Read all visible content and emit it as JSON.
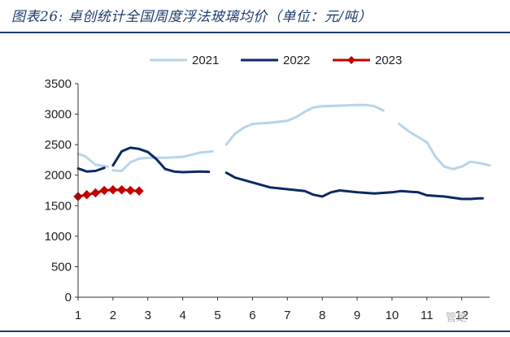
{
  "figure": {
    "title": "图表26: 卓创统计全国周度浮法玻璃均价（单位：元/吨）",
    "watermark": "管是",
    "colors": {
      "frame": "#1f3c6e"
    }
  },
  "chart_data": {
    "type": "line",
    "title": "",
    "xlabel": "",
    "ylabel": "",
    "x_ticks": [
      "1",
      "2",
      "3",
      "4",
      "5",
      "6",
      "7",
      "8",
      "9",
      "10",
      "11",
      "12"
    ],
    "y_ticks": [
      "0",
      "500",
      "1000",
      "1500",
      "2000",
      "2500",
      "3000",
      "3500"
    ],
    "xlim": [
      1,
      12.8
    ],
    "ylim": [
      0,
      3500
    ],
    "grid": false,
    "legend_position": "top",
    "series": [
      {
        "name": "2021",
        "color": "#b8d4ea",
        "marker": "none",
        "points": [
          [
            1.0,
            2350
          ],
          [
            1.2,
            2310
          ],
          [
            1.5,
            2170
          ],
          [
            1.85,
            2140
          ],
          [
            2.0,
            2080
          ],
          [
            2.25,
            2070
          ],
          [
            2.5,
            2210
          ],
          [
            2.75,
            2270
          ],
          [
            3.0,
            2285
          ],
          [
            3.5,
            2285
          ],
          [
            4.0,
            2300
          ],
          [
            4.5,
            2370
          ],
          [
            4.85,
            2390
          ],
          [
            5.25,
            2500
          ],
          [
            5.5,
            2680
          ],
          [
            5.75,
            2780
          ],
          [
            6.0,
            2840
          ],
          [
            6.5,
            2860
          ],
          [
            7.0,
            2890
          ],
          [
            7.25,
            2950
          ],
          [
            7.5,
            3040
          ],
          [
            7.75,
            3110
          ],
          [
            8.0,
            3130
          ],
          [
            8.5,
            3140
          ],
          [
            9.0,
            3150
          ],
          [
            9.25,
            3150
          ],
          [
            9.5,
            3130
          ],
          [
            9.75,
            3060
          ],
          [
            10.2,
            2840
          ],
          [
            10.5,
            2710
          ],
          [
            11.0,
            2540
          ],
          [
            11.25,
            2300
          ],
          [
            11.5,
            2140
          ],
          [
            11.75,
            2100
          ],
          [
            12.0,
            2140
          ],
          [
            12.25,
            2220
          ],
          [
            12.5,
            2200
          ],
          [
            12.8,
            2160
          ]
        ],
        "gaps_after_x": [
          1.85,
          4.85,
          9.75
        ]
      },
      {
        "name": "2022",
        "color": "#0b2a63",
        "marker": "none",
        "points": [
          [
            1.0,
            2110
          ],
          [
            1.25,
            2060
          ],
          [
            1.5,
            2070
          ],
          [
            1.75,
            2120
          ],
          [
            2.0,
            2160
          ],
          [
            2.25,
            2390
          ],
          [
            2.5,
            2450
          ],
          [
            2.75,
            2430
          ],
          [
            3.0,
            2380
          ],
          [
            3.25,
            2260
          ],
          [
            3.5,
            2100
          ],
          [
            3.75,
            2060
          ],
          [
            4.0,
            2050
          ],
          [
            4.5,
            2060
          ],
          [
            4.75,
            2055
          ],
          [
            5.25,
            2040
          ],
          [
            5.5,
            1960
          ],
          [
            6.0,
            1880
          ],
          [
            6.5,
            1800
          ],
          [
            7.0,
            1770
          ],
          [
            7.5,
            1740
          ],
          [
            7.75,
            1680
          ],
          [
            8.0,
            1650
          ],
          [
            8.25,
            1720
          ],
          [
            8.5,
            1750
          ],
          [
            9.0,
            1720
          ],
          [
            9.5,
            1700
          ],
          [
            10.0,
            1720
          ],
          [
            10.25,
            1740
          ],
          [
            10.75,
            1720
          ],
          [
            11.0,
            1670
          ],
          [
            11.5,
            1650
          ],
          [
            12.0,
            1610
          ],
          [
            12.25,
            1610
          ],
          [
            12.5,
            1620
          ],
          [
            12.6,
            1620
          ]
        ],
        "gaps_after_x": [
          1.75,
          4.75
        ]
      },
      {
        "name": "2023",
        "color": "#c00000",
        "marker": "diamond",
        "points": [
          [
            1.0,
            1650
          ],
          [
            1.25,
            1680
          ],
          [
            1.5,
            1710
          ],
          [
            1.75,
            1750
          ],
          [
            2.0,
            1760
          ],
          [
            2.25,
            1760
          ],
          [
            2.5,
            1750
          ],
          [
            2.75,
            1740
          ]
        ],
        "gaps_after_x": []
      }
    ]
  }
}
